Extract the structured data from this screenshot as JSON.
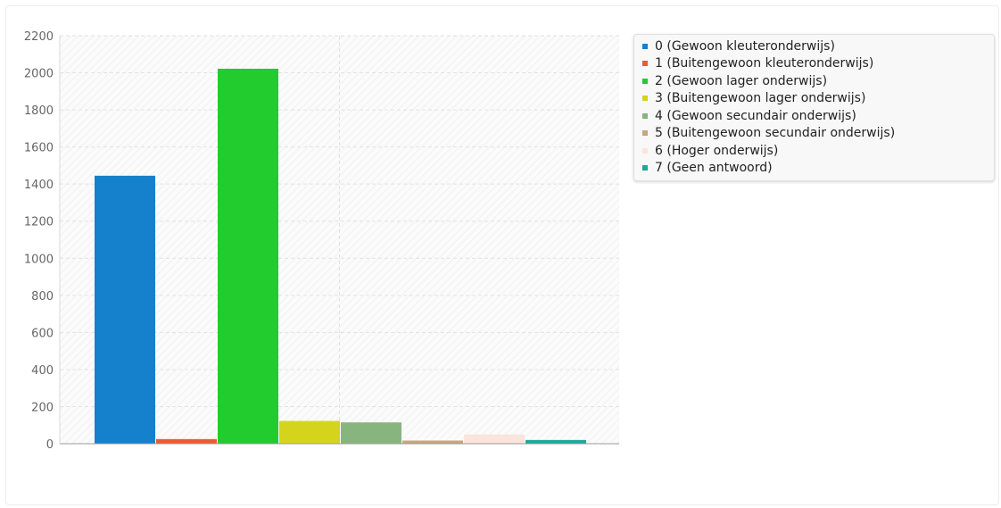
{
  "chart_data": {
    "type": "bar",
    "title": "",
    "xlabel": "",
    "ylabel": "",
    "ylim": [
      0,
      2200
    ],
    "yticks": [
      0,
      200,
      400,
      600,
      800,
      1000,
      1200,
      1400,
      1600,
      1800,
      2000,
      2200
    ],
    "grid": true,
    "legend_position": "right",
    "series": [
      {
        "name": "0 (Gewoon kleuteronderwijs)",
        "value": 1445,
        "color": "#1580cc"
      },
      {
        "name": "1 (Buitengewoon kleuteronderwijs)",
        "value": 25,
        "color": "#ee5a2e"
      },
      {
        "name": "2 (Gewoon lager onderwijs)",
        "value": 2022,
        "color": "#22cc2f"
      },
      {
        "name": "3 (Buitengewoon lager onderwijs)",
        "value": 123,
        "color": "#d4d41d"
      },
      {
        "name": "4 (Gewoon secundair onderwijs)",
        "value": 115,
        "color": "#88b47e"
      },
      {
        "name": "5 (Buitengewoon secundair onderwijs)",
        "value": 17,
        "color": "#c8a67c"
      },
      {
        "name": "6 (Hoger onderwijs)",
        "value": 50,
        "color": "#fbe4db"
      },
      {
        "name": "7 (Geen antwoord)",
        "value": 20,
        "color": "#1aa89a"
      }
    ]
  }
}
